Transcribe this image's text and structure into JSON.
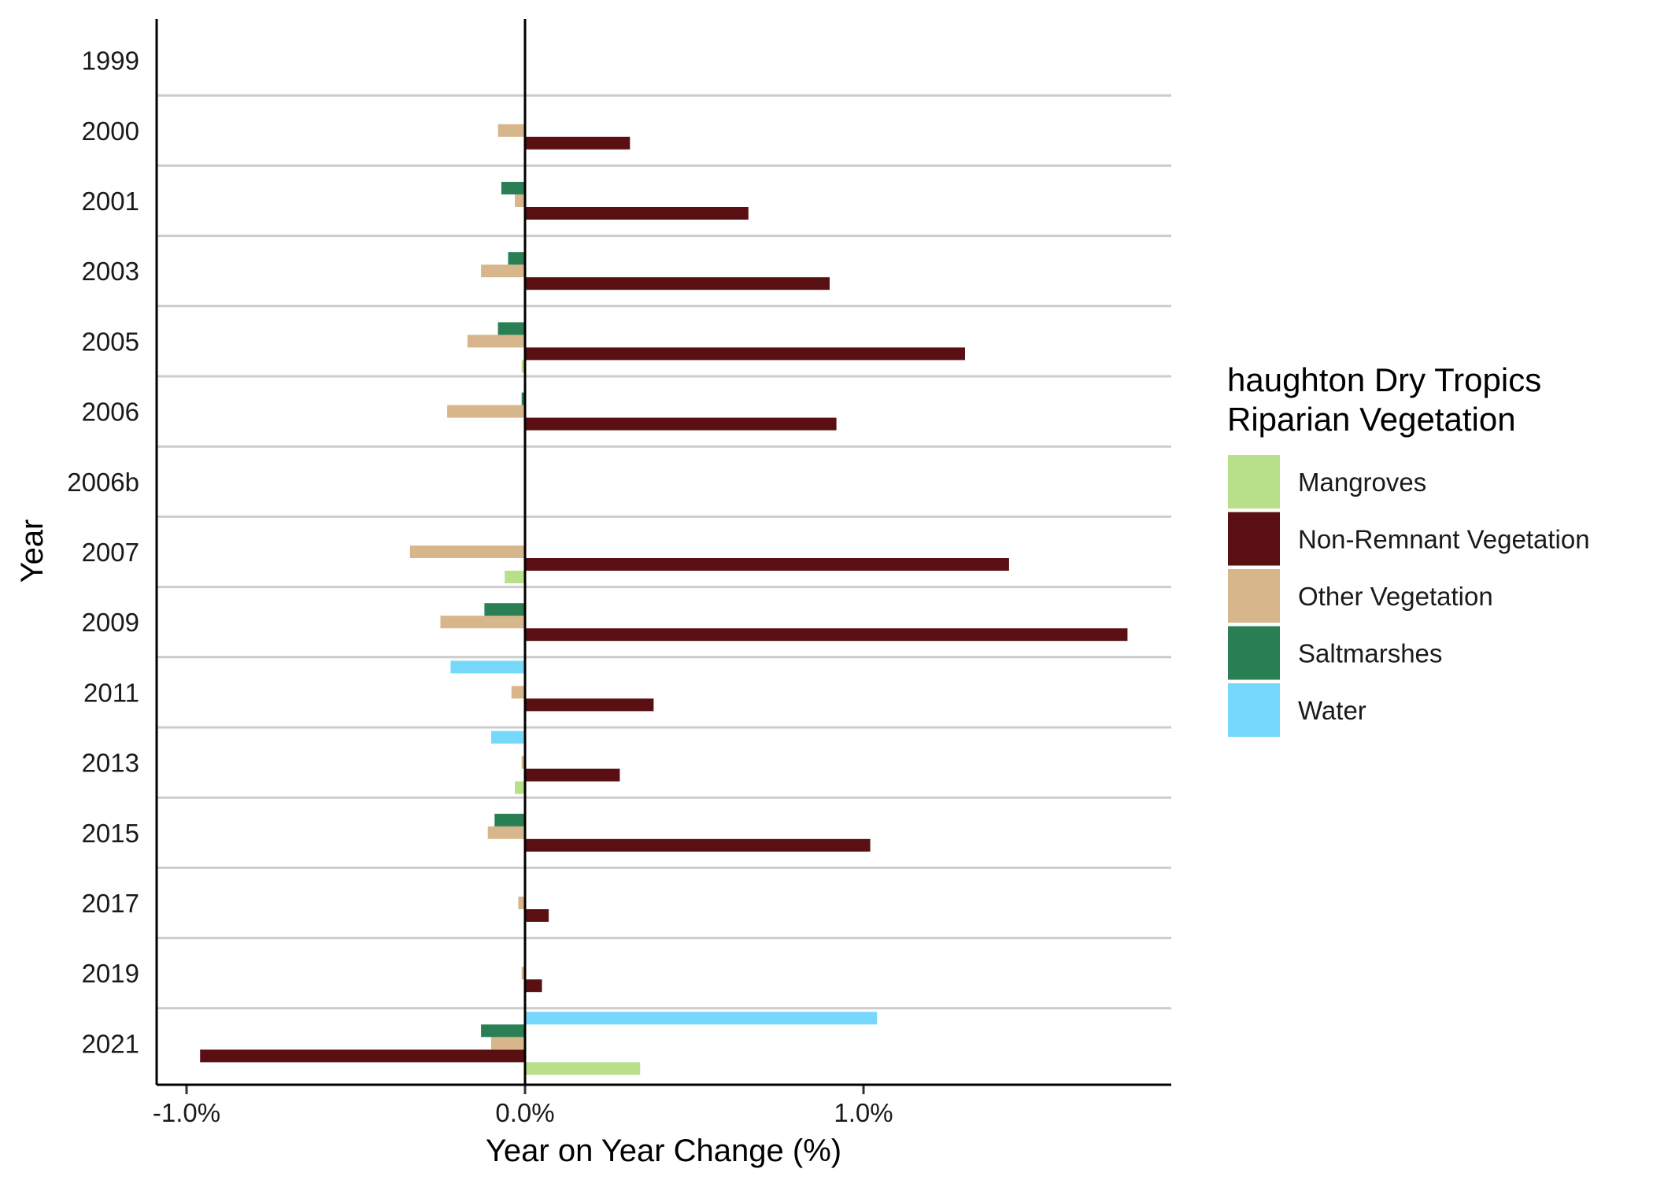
{
  "chart_data": {
    "type": "bar",
    "orientation": "horizontal",
    "categories": [
      "1999",
      "2000",
      "2001",
      "2003",
      "2005",
      "2006",
      "2006b",
      "2007",
      "2009",
      "2011",
      "2013",
      "2015",
      "2017",
      "2019",
      "2021"
    ],
    "series": [
      {
        "name": "Mangroves",
        "color": "#b8df8a",
        "values": [
          0,
          0,
          0,
          0,
          -0.01,
          0,
          0,
          -0.06,
          0,
          0,
          -0.03,
          0,
          0,
          0,
          0.34
        ]
      },
      {
        "name": "Non-Remnant Vegetation",
        "color": "#5a1012",
        "values": [
          0,
          0.31,
          0.66,
          0.9,
          1.3,
          0.92,
          0,
          1.43,
          1.78,
          0.38,
          0.28,
          1.02,
          0.07,
          0.05,
          -0.96
        ]
      },
      {
        "name": "Other Vegetation",
        "color": "#d6b68a",
        "values": [
          0,
          -0.08,
          -0.03,
          -0.13,
          -0.17,
          -0.23,
          0,
          -0.34,
          -0.25,
          -0.04,
          -0.01,
          -0.11,
          -0.02,
          -0.01,
          -0.1
        ]
      },
      {
        "name": "Saltmarshes",
        "color": "#2a7f55",
        "values": [
          0,
          0,
          -0.07,
          -0.05,
          -0.08,
          -0.01,
          0,
          0,
          -0.12,
          0,
          0,
          -0.09,
          0,
          0,
          -0.13
        ]
      },
      {
        "name": "Water",
        "color": "#76d8fa",
        "values": [
          0,
          0,
          0,
          0,
          0,
          0,
          0,
          0,
          0,
          -0.22,
          -0.1,
          0,
          0,
          0,
          1.04
        ]
      }
    ],
    "xlim": [
      -1.1,
      1.9
    ],
    "xticks": [
      -1,
      0,
      1
    ],
    "xtick_labels": [
      "-1.0%",
      "0.0%",
      "1.0%"
    ],
    "xlabel": "Year on Year Change (%)",
    "ylabel": "Year",
    "legend_title_lines": [
      "haughton Dry Tropics",
      "Riparian Vegetation"
    ],
    "legend_position": "right",
    "grid": "horizontal separators between years"
  }
}
